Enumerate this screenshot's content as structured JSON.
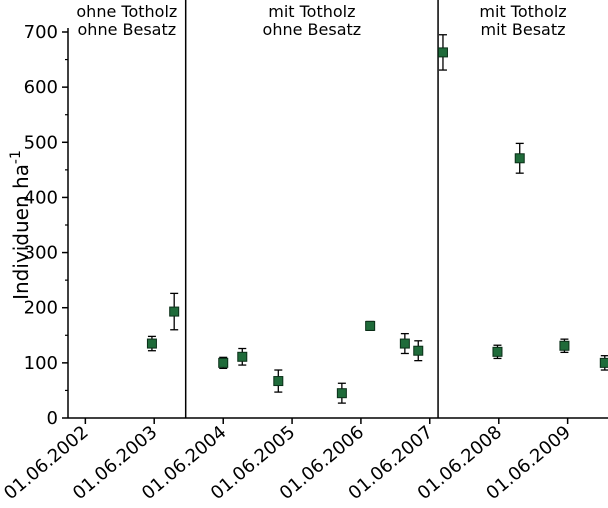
{
  "chart_data": {
    "type": "scatter",
    "title": "",
    "xlabel": "",
    "ylabel": "Individuen ha",
    "ylabel_superscript": "-1",
    "ylim": [
      0,
      700
    ],
    "yticks": [
      "0",
      "100",
      "200",
      "300",
      "400",
      "500",
      "600",
      "700"
    ],
    "xlim": [
      "2002-03-01",
      "2010-01-01"
    ],
    "xticks": [
      {
        "date": "2002-06-01",
        "label": "01.06.2002"
      },
      {
        "date": "2003-06-01",
        "label": "01.06.2003"
      },
      {
        "date": "2004-06-01",
        "label": "01.06.2004"
      },
      {
        "date": "2005-06-01",
        "label": "01.06.2005"
      },
      {
        "date": "2006-06-01",
        "label": "01.06.2006"
      },
      {
        "date": "2007-06-01",
        "label": "01.06.2007"
      },
      {
        "date": "2008-06-01",
        "label": "01.06.2008"
      },
      {
        "date": "2009-06-01",
        "label": "01.06.2009"
      }
    ],
    "phase_dividers": [
      "2003-11-15",
      "2007-07-15"
    ],
    "phases": [
      {
        "line1": "ohne Totholz",
        "line2": "ohne Besatz"
      },
      {
        "line1": "mit Totholz",
        "line2": "ohne Besatz"
      },
      {
        "line1": "mit Totholz",
        "line2": "mit Besatz"
      }
    ],
    "marker_color": "#1f6b3a",
    "points": [
      {
        "date": "2003-05-20",
        "y": 135,
        "err": 13
      },
      {
        "date": "2003-09-15",
        "y": 193,
        "err": 33
      },
      {
        "date": "2004-06-01",
        "y": 100,
        "err": 10
      },
      {
        "date": "2004-09-10",
        "y": 111,
        "err": 15
      },
      {
        "date": "2005-03-20",
        "y": 67,
        "err": 20
      },
      {
        "date": "2006-02-20",
        "y": 45,
        "err": 18
      },
      {
        "date": "2006-07-20",
        "y": 167,
        "err": 8
      },
      {
        "date": "2007-01-20",
        "y": 135,
        "err": 18
      },
      {
        "date": "2007-04-01",
        "y": 122,
        "err": 18
      },
      {
        "date": "2007-08-10",
        "y": 663,
        "err": 32
      },
      {
        "date": "2008-05-25",
        "y": 120,
        "err": 12
      },
      {
        "date": "2008-09-20",
        "y": 471,
        "err": 27
      },
      {
        "date": "2009-05-15",
        "y": 131,
        "err": 12
      },
      {
        "date": "2009-12-15",
        "y": 100,
        "err": 13
      }
    ]
  }
}
